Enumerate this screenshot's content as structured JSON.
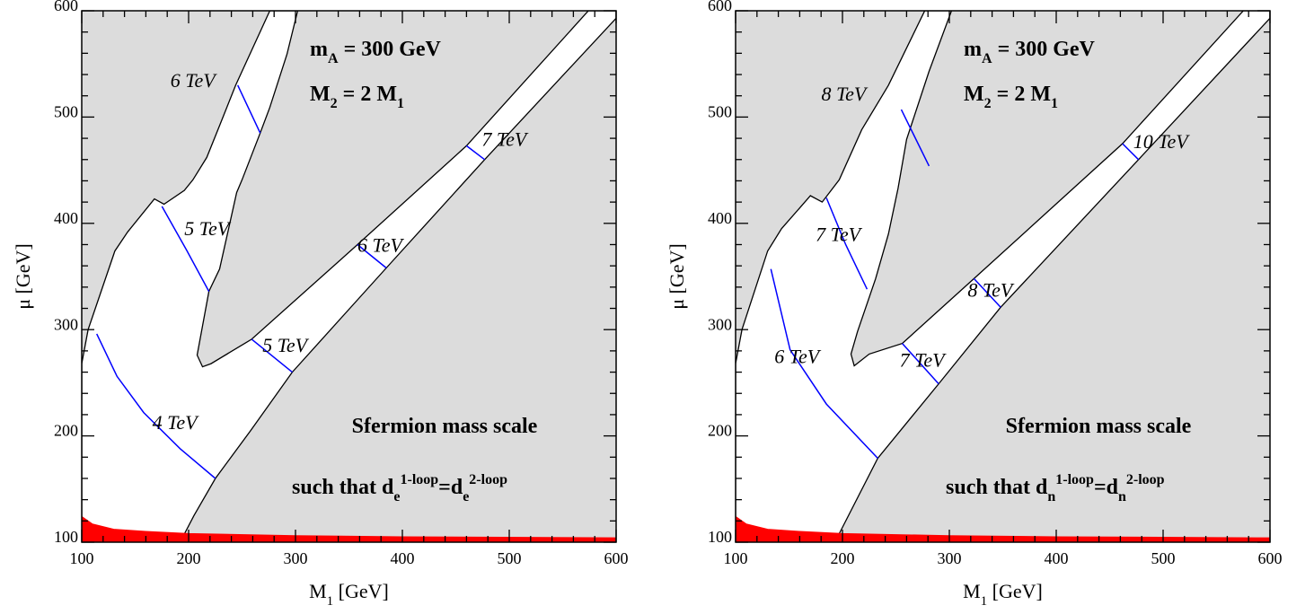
{
  "chart_data": [
    {
      "type": "contour",
      "xlim": [
        100,
        600
      ],
      "ylim": [
        100,
        600
      ],
      "xticks": [
        100,
        200,
        300,
        400,
        500,
        600
      ],
      "yticks": [
        100,
        200,
        300,
        400,
        500,
        600
      ],
      "minor_xticks": [
        120,
        140,
        160,
        180,
        220,
        240,
        260,
        280,
        320,
        340,
        360,
        380,
        420,
        440,
        460,
        480,
        520,
        540,
        560,
        580
      ],
      "minor_yticks": [
        120,
        140,
        160,
        180,
        220,
        240,
        260,
        280,
        320,
        340,
        360,
        380,
        420,
        440,
        460,
        480,
        520,
        540,
        560,
        580
      ],
      "xlabel": [
        {
          "text": "M"
        },
        {
          "text": "1",
          "shift": "sub"
        },
        {
          "text": "  [GeV]"
        }
      ],
      "ylabel": [
        {
          "text": "μ  [GeV]"
        }
      ],
      "background_color": "#dcdcdc",
      "regions": [
        {
          "color": "#ffffff",
          "x": [
            100,
            100,
            106,
            131,
            143,
            168,
            177,
            196,
            204,
            217,
            229,
            244,
            276,
            302,
            292,
            276,
            267,
            250,
            245,
            229,
            219,
            208,
            213,
            221,
            259,
            358,
            460,
            574,
            600,
            600,
            477,
            385,
            297,
            258,
            225,
            205,
            192,
            100
          ],
          "y": [
            100,
            268,
            300,
            374,
            392,
            423,
            418,
            431,
            441,
            462,
            492,
            530,
            600,
            600,
            559,
            509,
            485,
            441,
            429,
            357,
            336,
            276,
            265,
            268,
            291,
            380,
            473,
            600,
            600,
            593,
            460,
            358,
            260,
            205,
            160,
            125,
            100,
            100
          ]
        },
        {
          "color": "#ff0000",
          "x": [
            100,
            100,
            110,
            130,
            160,
            200,
            300,
            400,
            600,
            600
          ],
          "y": [
            100,
            124,
            117,
            112,
            110,
            108,
            106,
            105,
            104,
            100
          ]
        }
      ],
      "contours": [
        {
          "label": "6 TeV",
          "color": "#0000ff",
          "x": [
            246,
            267
          ],
          "y": [
            530,
            485
          ]
        },
        {
          "label": "5 TeV",
          "color": "#0000ff",
          "x": [
            175,
            198,
            219
          ],
          "y": [
            416,
            375,
            336
          ]
        },
        {
          "label": "7 TeV",
          "color": "#0000ff",
          "x": [
            460,
            477
          ],
          "y": [
            473,
            460
          ]
        },
        {
          "label": "6 TeV",
          "color": "#0000ff",
          "x": [
            358,
            385
          ],
          "y": [
            380,
            358
          ]
        },
        {
          "label": "5 TeV",
          "color": "#0000ff",
          "x": [
            259,
            297
          ],
          "y": [
            291,
            260
          ]
        },
        {
          "label": "4 TeV",
          "color": "#0000ff",
          "x": [
            114,
            133,
            158,
            192,
            225
          ],
          "y": [
            296,
            256,
            222,
            188,
            160
          ]
        }
      ],
      "annotations": [
        [
          {
            "text": "m"
          },
          {
            "text": "A",
            "shift": "sub"
          },
          {
            "text": " = 300 GeV"
          }
        ],
        [
          {
            "text": "M"
          },
          {
            "text": "2",
            "shift": "sub"
          },
          {
            "text": " = 2 M"
          },
          {
            "text": "1",
            "shift": "sub"
          }
        ],
        [
          {
            "text": "Sfermion mass scale"
          }
        ],
        [
          {
            "text": "such that d"
          },
          {
            "text": "e",
            "shift": "sub"
          },
          {
            "text": "1-loop",
            "shift": "sup"
          },
          {
            "text": "=d"
          },
          {
            "text": "e",
            "shift": "sub"
          },
          {
            "text": "2-loop",
            "shift": "sup"
          }
        ]
      ]
    },
    {
      "type": "contour",
      "xlim": [
        100,
        600
      ],
      "ylim": [
        100,
        600
      ],
      "xticks": [
        100,
        200,
        300,
        400,
        500,
        600
      ],
      "yticks": [
        100,
        200,
        300,
        400,
        500,
        600
      ],
      "minor_xticks": [
        120,
        140,
        160,
        180,
        220,
        240,
        260,
        280,
        320,
        340,
        360,
        380,
        420,
        440,
        460,
        480,
        520,
        540,
        560,
        580
      ],
      "minor_yticks": [
        120,
        140,
        160,
        180,
        220,
        240,
        260,
        280,
        320,
        340,
        360,
        380,
        420,
        440,
        460,
        480,
        520,
        540,
        560,
        580
      ],
      "xlabel": [
        {
          "text": "M"
        },
        {
          "text": "1",
          "shift": "sub"
        },
        {
          "text": "  [GeV]"
        }
      ],
      "ylabel": [
        {
          "text": "μ  [GeV]"
        }
      ],
      "background_color": "#dcdcdc",
      "regions": [
        {
          "color": "#ffffff",
          "x": [
            100,
            100,
            106,
            130,
            143,
            170,
            181,
            197,
            218,
            243,
            277,
            302,
            281,
            260,
            252,
            243,
            231,
            214,
            208,
            211,
            225,
            256,
            323,
            462,
            575,
            600,
            600,
            477,
            348,
            290,
            233,
            197,
            193,
            100
          ],
          "y": [
            100,
            268,
            300,
            374,
            395,
            426,
            420,
            441,
            488,
            530,
            600,
            600,
            543,
            479,
            433,
            390,
            348,
            298,
            277,
            266,
            277,
            287,
            348,
            475,
            600,
            600,
            593,
            460,
            321,
            249,
            179,
            108,
            100,
            100
          ]
        },
        {
          "color": "#ff0000",
          "x": [
            100,
            100,
            110,
            130,
            160,
            200,
            300,
            400,
            600,
            600
          ],
          "y": [
            100,
            124,
            117,
            112,
            110,
            108,
            106,
            105,
            104,
            100
          ]
        }
      ],
      "contours": [
        {
          "label": "8 TeV",
          "color": "#0000ff",
          "x": [
            255,
            281
          ],
          "y": [
            507,
            454
          ]
        },
        {
          "label": "7 TeV",
          "color": "#0000ff",
          "x": [
            185,
            203,
            223
          ],
          "y": [
            424,
            380,
            338
          ]
        },
        {
          "label": "10 TeV",
          "color": "#0000ff",
          "x": [
            462,
            477
          ],
          "y": [
            475,
            460
          ]
        },
        {
          "label": "8 TeV",
          "color": "#0000ff",
          "x": [
            323,
            348
          ],
          "y": [
            348,
            321
          ]
        },
        {
          "label": "7 TeV",
          "color": "#0000ff",
          "x": [
            256,
            290
          ],
          "y": [
            287,
            249
          ]
        },
        {
          "label": "6 TeV",
          "color": "#0000ff",
          "x": [
            133,
            151,
            185,
            233
          ],
          "y": [
            357,
            281,
            230,
            179
          ]
        }
      ],
      "annotations": [
        [
          {
            "text": "m"
          },
          {
            "text": "A",
            "shift": "sub"
          },
          {
            "text": " = 300 GeV"
          }
        ],
        [
          {
            "text": "M"
          },
          {
            "text": "2",
            "shift": "sub"
          },
          {
            "text": " = 2 M"
          },
          {
            "text": "1",
            "shift": "sub"
          }
        ],
        [
          {
            "text": "Sfermion mass scale"
          }
        ],
        [
          {
            "text": "such that d"
          },
          {
            "text": "n",
            "shift": "sub"
          },
          {
            "text": "1-loop",
            "shift": "sup"
          },
          {
            "text": "=d"
          },
          {
            "text": "n",
            "shift": "sub"
          },
          {
            "text": "2-loop",
            "shift": "sup"
          }
        ]
      ]
    }
  ]
}
